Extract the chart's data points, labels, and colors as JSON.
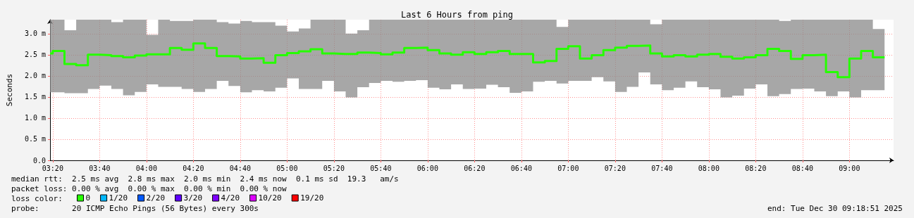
{
  "chart_data": {
    "type": "step",
    "title": "Last 6 Hours from ping",
    "ylabel": "Seconds",
    "x": [
      3.314,
      3.3333,
      3.4167,
      3.5,
      3.5833,
      3.6667,
      3.75,
      3.8333,
      3.9167,
      4,
      4.0833,
      4.1667,
      4.25,
      4.3333,
      4.4167,
      4.5,
      4.5833,
      4.6667,
      4.75,
      4.8333,
      4.9167,
      5,
      5.0833,
      5.1667,
      5.25,
      5.3333,
      5.4167,
      5.5,
      5.5833,
      5.6667,
      5.75,
      5.8333,
      5.9167,
      6,
      6.0833,
      6.1667,
      6.25,
      6.3333,
      6.4167,
      6.5,
      6.5833,
      6.6667,
      6.75,
      6.8333,
      6.9167,
      7,
      7.0833,
      7.1667,
      7.25,
      7.3333,
      7.4167,
      7.5,
      7.5833,
      7.6667,
      7.75,
      7.8333,
      7.9167,
      8,
      8.0833,
      8.1667,
      8.25,
      8.3333,
      8.4167,
      8.5,
      8.5833,
      8.6667,
      8.75,
      8.8333,
      8.9167,
      9,
      9.0833,
      9.1667,
      9.25
    ],
    "series": [
      {
        "name": "0",
        "color": "#26ff00",
        "values": [
          2.53,
          2.59,
          2.28,
          2.25,
          2.5,
          2.49,
          2.47,
          2.44,
          2.48,
          2.51,
          2.51,
          2.66,
          2.62,
          2.77,
          2.66,
          2.47,
          2.46,
          2.41,
          2.42,
          2.31,
          2.49,
          2.54,
          2.58,
          2.63,
          2.53,
          2.52,
          2.52,
          2.55,
          2.54,
          2.51,
          2.55,
          2.66,
          2.67,
          2.61,
          2.53,
          2.5,
          2.56,
          2.52,
          2.56,
          2.59,
          2.52,
          2.52,
          2.32,
          2.35,
          2.64,
          2.7,
          2.41,
          2.49,
          2.61,
          2.67,
          2.71,
          2.72,
          2.53,
          2.46,
          2.49,
          2.46,
          2.5,
          2.52,
          2.45,
          2.41,
          2.44,
          2.49,
          2.64,
          2.59,
          2.4,
          2.49,
          2.5,
          2.09,
          1.97,
          2.41,
          2.59,
          2.44,
          2.44
        ],
        "lower": [
          1.61,
          1.61,
          1.59,
          1.59,
          1.69,
          1.77,
          1.69,
          1.54,
          1.62,
          1.8,
          1.74,
          1.74,
          1.69,
          1.62,
          1.69,
          1.88,
          1.76,
          1.61,
          1.66,
          1.63,
          1.72,
          1.94,
          1.69,
          1.69,
          1.88,
          1.63,
          1.49,
          1.73,
          1.83,
          1.88,
          1.86,
          1.88,
          1.9,
          1.72,
          1.68,
          1.8,
          1.69,
          1.7,
          1.79,
          1.73,
          1.6,
          1.63,
          1.86,
          1.88,
          1.82,
          1.88,
          1.88,
          1.97,
          1.87,
          1.62,
          1.74,
          2.08,
          1.8,
          1.66,
          1.72,
          1.87,
          1.73,
          1.68,
          1.49,
          1.53,
          1.7,
          1.8,
          1.52,
          1.57,
          1.69,
          1.7,
          1.63,
          1.52,
          1.63,
          1.49,
          1.66,
          1.66,
          1.66
        ],
        "upper": [
          3.33,
          3.33,
          3.08,
          3.33,
          3.33,
          3.33,
          3.27,
          3.33,
          3.33,
          2.97,
          3.33,
          3.3,
          3.3,
          3.33,
          3.33,
          3.27,
          3.24,
          3.3,
          3.27,
          3.27,
          3.19,
          3.05,
          3.12,
          3.33,
          3.33,
          3.33,
          3.0,
          3.08,
          3.33,
          3.33,
          3.33,
          3.33,
          3.33,
          3.33,
          3.33,
          3.33,
          3.33,
          3.33,
          3.33,
          3.33,
          3.33,
          3.33,
          3.33,
          3.33,
          3.16,
          3.33,
          3.33,
          3.33,
          3.33,
          3.33,
          3.33,
          3.33,
          3.22,
          3.33,
          3.33,
          3.33,
          3.33,
          3.33,
          3.33,
          3.33,
          3.33,
          3.33,
          3.33,
          3.3,
          3.33,
          3.33,
          3.33,
          3.33,
          3.33,
          3.33,
          3.33,
          3.11,
          3.11
        ]
      },
      {
        "name": "1/20",
        "color": "#00b8ff",
        "values": [
          null,
          null,
          null,
          null,
          null,
          null,
          null,
          null,
          null,
          null,
          null,
          null,
          null,
          null,
          null,
          null,
          null,
          null,
          null,
          null,
          null,
          null,
          null,
          null,
          null,
          null,
          null,
          null,
          null,
          null,
          null,
          null,
          null,
          null,
          null,
          null,
          null,
          null,
          null,
          null,
          null,
          null,
          null,
          null,
          null,
          null,
          null,
          null,
          null,
          null,
          null,
          null,
          null,
          null,
          null,
          null,
          null,
          null,
          null,
          null,
          null,
          null,
          null,
          null,
          null,
          null,
          null,
          null,
          null,
          null,
          null,
          null,
          null
        ]
      },
      {
        "name": "2/20",
        "color": "#0059ff",
        "values": [
          null,
          null,
          null,
          null,
          null,
          null,
          null,
          null,
          null,
          null,
          null,
          null,
          null,
          null,
          null,
          null,
          null,
          null,
          null,
          null,
          null,
          null,
          null,
          null,
          null,
          null,
          null,
          null,
          null,
          null,
          null,
          null,
          null,
          null,
          null,
          null,
          null,
          null,
          null,
          null,
          null,
          null,
          null,
          null,
          null,
          null,
          null,
          null,
          null,
          null,
          null,
          null,
          null,
          null,
          null,
          null,
          null,
          null,
          null,
          null,
          null,
          null,
          null,
          null,
          null,
          null,
          null,
          null,
          null,
          null,
          null,
          null,
          null
        ]
      },
      {
        "name": "3/20",
        "color": "#5e00ff",
        "values": [
          null,
          null,
          null,
          null,
          null,
          null,
          null,
          null,
          null,
          null,
          null,
          null,
          null,
          null,
          null,
          null,
          null,
          null,
          null,
          null,
          null,
          null,
          null,
          null,
          null,
          null,
          null,
          null,
          null,
          null,
          null,
          null,
          null,
          null,
          null,
          null,
          null,
          null,
          null,
          null,
          null,
          null,
          null,
          null,
          null,
          null,
          null,
          null,
          null,
          null,
          null,
          null,
          null,
          null,
          null,
          null,
          null,
          null,
          null,
          null,
          null,
          null,
          null,
          null,
          null,
          null,
          null,
          null,
          null,
          null,
          null,
          null,
          null
        ]
      },
      {
        "name": "4/20",
        "color": "#7e00ff",
        "values": [
          null,
          null,
          null,
          null,
          null,
          null,
          null,
          null,
          null,
          null,
          null,
          null,
          null,
          null,
          null,
          null,
          null,
          null,
          null,
          null,
          null,
          null,
          null,
          null,
          null,
          null,
          null,
          null,
          null,
          null,
          null,
          null,
          null,
          null,
          null,
          null,
          null,
          null,
          null,
          null,
          null,
          null,
          null,
          null,
          null,
          null,
          null,
          null,
          null,
          null,
          null,
          null,
          null,
          null,
          null,
          null,
          null,
          null,
          null,
          null,
          null,
          null,
          null,
          null,
          null,
          null,
          null,
          null,
          null,
          null,
          null,
          null,
          null
        ]
      },
      {
        "name": "10/20",
        "color": "#dd00ff",
        "values": [
          null,
          null,
          null,
          null,
          null,
          null,
          null,
          null,
          null,
          null,
          null,
          null,
          null,
          null,
          null,
          null,
          null,
          null,
          null,
          null,
          null,
          null,
          null,
          null,
          null,
          null,
          null,
          null,
          null,
          null,
          null,
          null,
          null,
          null,
          null,
          null,
          null,
          null,
          null,
          null,
          null,
          null,
          null,
          null,
          null,
          null,
          null,
          null,
          null,
          null,
          null,
          null,
          null,
          null,
          null,
          null,
          null,
          null,
          null,
          null,
          null,
          null,
          null,
          null,
          null,
          null,
          null,
          null,
          null,
          null,
          null,
          null,
          null
        ]
      },
      {
        "name": "19/20",
        "color": "#ff0000",
        "values": [
          null,
          null,
          null,
          null,
          null,
          null,
          null,
          null,
          null,
          null,
          null,
          null,
          null,
          null,
          null,
          null,
          null,
          null,
          null,
          null,
          null,
          null,
          null,
          null,
          null,
          null,
          null,
          null,
          null,
          null,
          null,
          null,
          null,
          null,
          null,
          null,
          null,
          null,
          null,
          null,
          null,
          null,
          null,
          null,
          null,
          null,
          null,
          null,
          null,
          null,
          null,
          null,
          null,
          null,
          null,
          null,
          null,
          null,
          null,
          null,
          null,
          null,
          null,
          null,
          null,
          null,
          null,
          null,
          null,
          null,
          null,
          null,
          null
        ]
      }
    ],
    "xlim": [
      3.314,
      9.314
    ],
    "xticks": [
      {
        "value": 3.3333,
        "label": "03:20"
      },
      {
        "value": 3.6667,
        "label": "03:40"
      },
      {
        "value": 4,
        "label": "04:00"
      },
      {
        "value": 4.3333,
        "label": "04:20"
      },
      {
        "value": 4.6667,
        "label": "04:40"
      },
      {
        "value": 5,
        "label": "05:00"
      },
      {
        "value": 5.3333,
        "label": "05:20"
      },
      {
        "value": 5.6667,
        "label": "05:40"
      },
      {
        "value": 6,
        "label": "06:00"
      },
      {
        "value": 6.3333,
        "label": "06:20"
      },
      {
        "value": 6.6667,
        "label": "06:40"
      },
      {
        "value": 7,
        "label": "07:00"
      },
      {
        "value": 7.3333,
        "label": "07:20"
      },
      {
        "value": 7.6667,
        "label": "07:40"
      },
      {
        "value": 8,
        "label": "08:00"
      },
      {
        "value": 8.3333,
        "label": "08:20"
      },
      {
        "value": 8.6667,
        "label": "08:40"
      },
      {
        "value": 9,
        "label": "09:00"
      }
    ],
    "ylim": [
      0,
      3.33
    ],
    "yticks": [
      {
        "value": 0,
        "label": "0.0"
      },
      {
        "value": 0.5,
        "label": "0.5 m"
      },
      {
        "value": 1,
        "label": "1.0 m"
      },
      {
        "value": 1.5,
        "label": "1.5 m"
      },
      {
        "value": 2,
        "label": "2.0 m"
      },
      {
        "value": 2.5,
        "label": "2.5 m"
      },
      {
        "value": 3,
        "label": "3.0 m"
      }
    ],
    "grid": true,
    "legend": "bottom left",
    "marker": "none",
    "annotations": [
      "median rtt:  2.5 ms avg  2.8 ms max  2.0 ms min  2.4 ms now  0.1 ms sd  19.3   am/s",
      "packet loss: 0.00 % avg  0.00 % max  0.00 % min  0.00 % now",
      "loss color:",
      "probe:       20 ICMP Echo Pings (56 Bytes) every 300s",
      "end: Tue Dec 30 09:18:51 2025"
    ]
  }
}
